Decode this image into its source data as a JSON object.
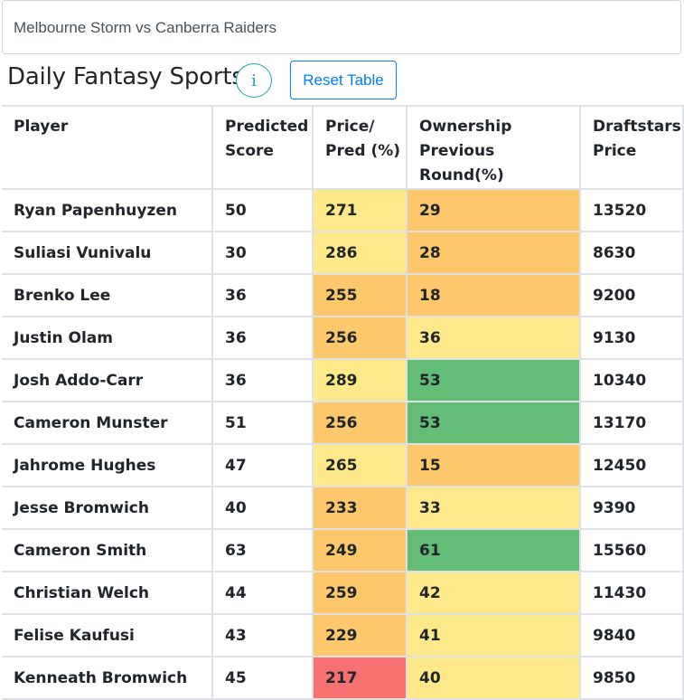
{
  "match": {
    "label": "Melbourne Storm vs Canberra Raiders"
  },
  "header": {
    "title": "Daily Fantasy Sports",
    "info_glyph": "i",
    "reset_label": "Reset Table"
  },
  "table": {
    "columns": [
      "Player",
      "Predicted Score",
      "Price/ Pred (%)",
      "Ownership Previous Round(%)",
      "Draftstars Price"
    ],
    "colors": {
      "light": "#fde98a",
      "orange": "#fdc76c",
      "red": "#f87171",
      "green": "#63bd77"
    },
    "rows": [
      {
        "player": "Ryan Papenhuyzen",
        "predicted": "50",
        "price_pred": "271",
        "price_pred_color": "light",
        "ownership": "29",
        "ownership_color": "orange",
        "price": "13520"
      },
      {
        "player": "Suliasi Vunivalu",
        "predicted": "30",
        "price_pred": "286",
        "price_pred_color": "light",
        "ownership": "28",
        "ownership_color": "orange",
        "price": "8630"
      },
      {
        "player": "Brenko Lee",
        "predicted": "36",
        "price_pred": "255",
        "price_pred_color": "orange",
        "ownership": "18",
        "ownership_color": "orange",
        "price": "9200"
      },
      {
        "player": "Justin Olam",
        "predicted": "36",
        "price_pred": "256",
        "price_pred_color": "orange",
        "ownership": "36",
        "ownership_color": "light",
        "price": "9130"
      },
      {
        "player": "Josh Addo-Carr",
        "predicted": "36",
        "price_pred": "289",
        "price_pred_color": "light",
        "ownership": "53",
        "ownership_color": "green",
        "price": "10340"
      },
      {
        "player": "Cameron Munster",
        "predicted": "51",
        "price_pred": "256",
        "price_pred_color": "orange",
        "ownership": "53",
        "ownership_color": "green",
        "price": "13170"
      },
      {
        "player": "Jahrome Hughes",
        "predicted": "47",
        "price_pred": "265",
        "price_pred_color": "light",
        "ownership": "15",
        "ownership_color": "orange",
        "price": "12450"
      },
      {
        "player": "Jesse Bromwich",
        "predicted": "40",
        "price_pred": "233",
        "price_pred_color": "orange",
        "ownership": "33",
        "ownership_color": "light",
        "price": "9390"
      },
      {
        "player": "Cameron Smith",
        "predicted": "63",
        "price_pred": "249",
        "price_pred_color": "orange",
        "ownership": "61",
        "ownership_color": "green",
        "price": "15560"
      },
      {
        "player": "Christian Welch",
        "predicted": "44",
        "price_pred": "259",
        "price_pred_color": "orange",
        "ownership": "42",
        "ownership_color": "light",
        "price": "11430"
      },
      {
        "player": "Felise Kaufusi",
        "predicted": "43",
        "price_pred": "229",
        "price_pred_color": "orange",
        "ownership": "41",
        "ownership_color": "light",
        "price": "9840"
      },
      {
        "player": "Kenneath Bromwich",
        "predicted": "45",
        "price_pred": "217",
        "price_pred_color": "red",
        "ownership": "40",
        "ownership_color": "light",
        "price": "9850"
      }
    ]
  }
}
